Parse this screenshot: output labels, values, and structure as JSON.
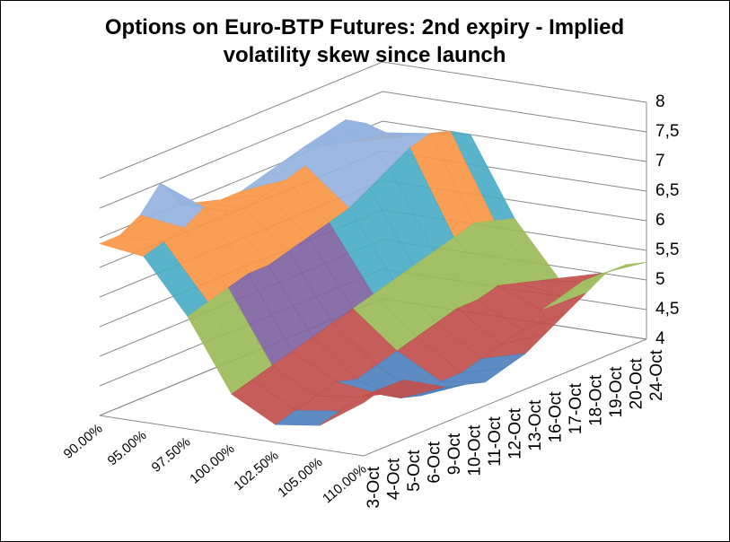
{
  "chart_data": {
    "type": "surface",
    "title": "Options on Euro-BTP Futures: 2nd expiry - Implied volatility skew since launch",
    "categories": [
      "90.00%",
      "95.00%",
      "97.50%",
      "100.00%",
      "102.50%",
      "105.00%",
      "110.00%"
    ],
    "series": [
      {
        "name": "3-Oct",
        "values": [
          6.9,
          6.8,
          5.9,
          4.7,
          4.3,
          4.4,
          4.9
        ]
      },
      {
        "name": "4-Oct",
        "values": [
          6.9,
          6.9,
          6.0,
          4.8,
          4.4,
          4.5,
          5.0
        ]
      },
      {
        "name": "5-Oct",
        "values": [
          7.1,
          7.0,
          6.1,
          4.9,
          4.5,
          4.6,
          5.0
        ]
      },
      {
        "name": "6-Oct",
        "values": [
          7.5,
          7.2,
          6.2,
          5.0,
          4.6,
          4.5,
          4.8
        ]
      },
      {
        "name": "9-Oct",
        "values": [
          7.0,
          7.0,
          6.2,
          5.1,
          4.5,
          4.3,
          4.6
        ]
      },
      {
        "name": "10-Oct",
        "values": [
          6.9,
          6.9,
          6.3,
          5.2,
          4.6,
          4.2,
          4.5
        ]
      },
      {
        "name": "11-Oct",
        "values": [
          6.8,
          7.0,
          6.4,
          5.3,
          4.7,
          4.3,
          4.4
        ]
      },
      {
        "name": "12-Oct",
        "values": [
          6.8,
          7.1,
          6.5,
          5.4,
          4.8,
          4.3,
          4.5
        ]
      },
      {
        "name": "13-Oct",
        "values": [
          6.9,
          7.2,
          6.6,
          5.5,
          4.9,
          4.4,
          4.6
        ]
      },
      {
        "name": "16-Oct",
        "values": [
          7.0,
          7.6,
          6.8,
          5.6,
          5.0,
          4.5,
          4.8
        ]
      },
      {
        "name": "17-Oct",
        "values": [
          7.1,
          7.7,
          7.0,
          5.7,
          5.0,
          4.6,
          5.0
        ]
      },
      {
        "name": "18-Oct",
        "values": [
          7.0,
          7.5,
          7.2,
          5.8,
          5.1,
          4.8,
          5.2
        ]
      },
      {
        "name": "19-Oct",
        "values": [
          6.9,
          7.2,
          7.3,
          5.9,
          5.0,
          4.9,
          5.4
        ]
      },
      {
        "name": "20-Oct",
        "values": [
          6.8,
          7.0,
          7.2,
          5.8,
          4.9,
          5.0,
          5.4
        ]
      },
      {
        "name": "24-Oct",
        "values": [
          6.8,
          6.9,
          7.0,
          5.7,
          4.8,
          5.0,
          5.3
        ]
      }
    ],
    "zlim": [
      4,
      8
    ],
    "zticks": [
      4,
      {
        "value": 4.5,
        "label": "4,5"
      },
      5,
      {
        "value": 5.5,
        "label": "5,5"
      },
      6,
      {
        "value": 6.5,
        "label": "6,5"
      },
      7,
      {
        "value": 7.5,
        "label": "7,5"
      },
      8
    ],
    "band_colors": [
      "#4f81bd",
      "#c0504d",
      "#9bbb59",
      "#8064a2",
      "#4bacc6",
      "#f79646",
      "#95b3e0",
      "#d99694"
    ],
    "grid": true
  }
}
